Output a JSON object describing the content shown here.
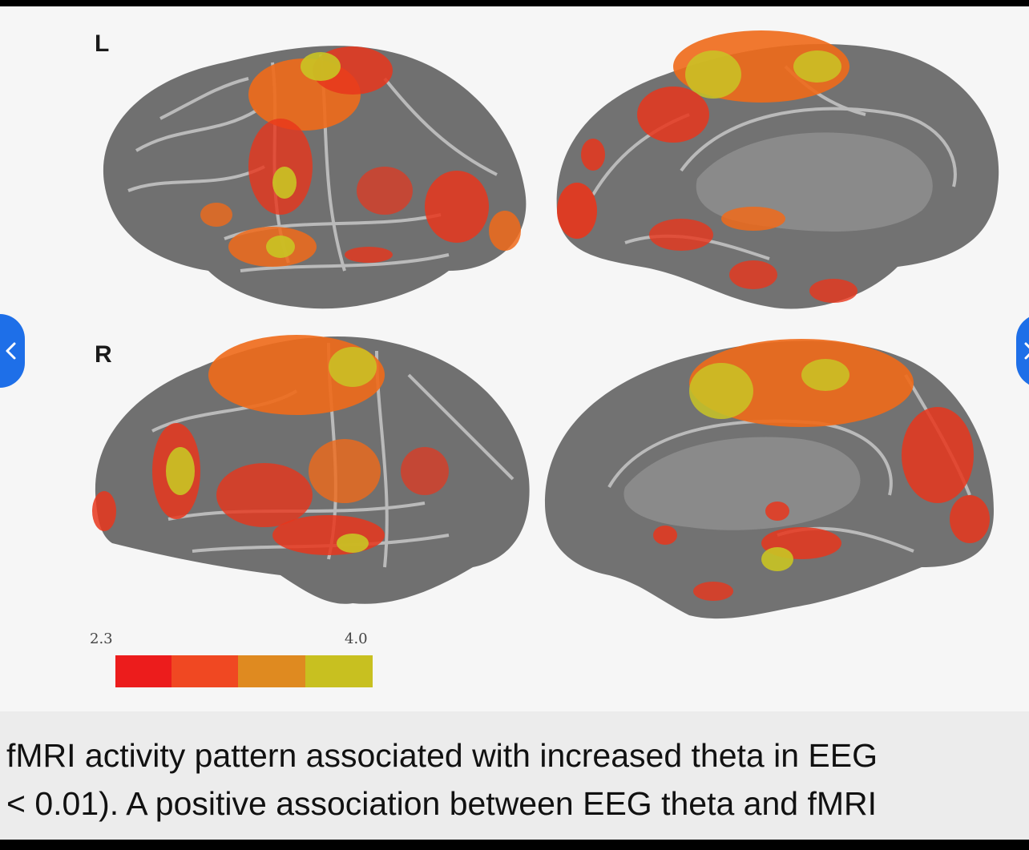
{
  "figure": {
    "hemispheres": {
      "left_label": "L",
      "right_label": "R"
    },
    "colorbar": {
      "min_label": "2.3",
      "max_label": "4.0",
      "colors": [
        "#ec1c1c",
        "#f04822",
        "#df8a20",
        "#c8c020"
      ]
    },
    "colors": {
      "cortex": "#6f6f6f",
      "sulcus_highlight": "#d6d6d6",
      "activation_low": "#e8361c",
      "activation_mid": "#f06a1a",
      "activation_high": "#c9c424"
    }
  },
  "caption": {
    "line1": "fMRI activity pattern associated with increased theta in EEG",
    "line2": "< 0.01). A positive association between EEG theta and fMRI"
  },
  "navigation": {
    "previous_icon": "chevron-left-icon",
    "next_icon": "chevron-right-icon",
    "accent": "#1e6fe8"
  }
}
